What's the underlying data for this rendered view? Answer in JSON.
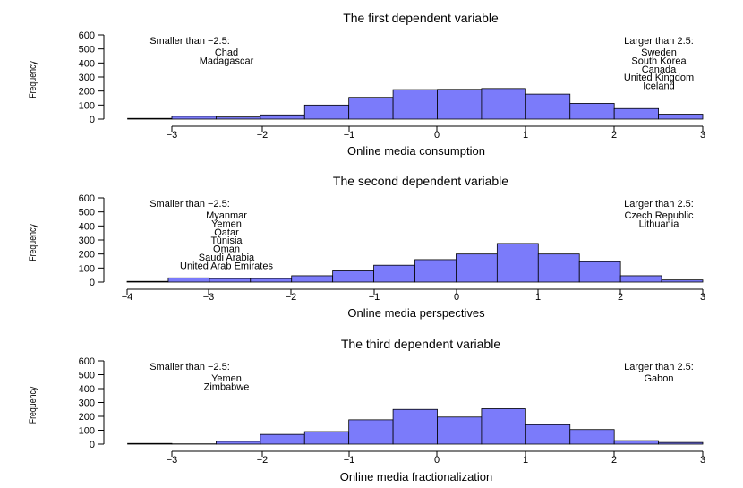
{
  "chart_data": [
    {
      "type": "bar",
      "title": "The first dependent variable",
      "xlabel": "Online media consumption",
      "ylabel": "Frequency",
      "bin_edges": [
        -3.5,
        -3,
        -2.5,
        -2,
        -1.5,
        -1,
        -0.5,
        0,
        0.5,
        1,
        1.5,
        2,
        2.5,
        3
      ],
      "values": [
        5,
        20,
        15,
        30,
        100,
        155,
        210,
        212,
        218,
        178,
        112,
        75,
        35
      ],
      "xlim": [
        -3.5,
        3
      ],
      "x_ticks": [
        "-3",
        "-2",
        "-1",
        "0",
        "1",
        "2",
        "3"
      ],
      "x_tick_values": [
        -3,
        -2,
        -1,
        0,
        1,
        2,
        3
      ],
      "ylim": [
        0,
        600
      ],
      "y_ticks": [
        "0",
        "100",
        "200",
        "300",
        "400",
        "500",
        "600"
      ],
      "y_tick_values": [
        0,
        100,
        200,
        300,
        400,
        500,
        600
      ],
      "left_note": {
        "heading": "Smaller than −2.5:",
        "items": [
          "Chad",
          "Madagascar"
        ]
      },
      "right_note": {
        "heading": "Larger than 2.5:",
        "items": [
          "Sweden",
          "South Korea",
          "Canada",
          "United Kingdom",
          "Iceland"
        ]
      }
    },
    {
      "type": "bar",
      "title": "The second dependent variable",
      "xlabel": "Online media perspectives",
      "ylabel": "Frequency",
      "bin_edges": [
        -4,
        -3.5,
        -3,
        -2.5,
        -2,
        -1.5,
        -1,
        -0.5,
        0,
        0.5,
        1,
        1.5,
        2,
        2.5,
        3
      ],
      "values": [
        5,
        30,
        25,
        25,
        45,
        80,
        120,
        160,
        200,
        275,
        200,
        145,
        45,
        15
      ],
      "xlim": [
        -4,
        3
      ],
      "x_ticks": [
        "-4",
        "-3",
        "-2",
        "-1",
        "0",
        "1",
        "2",
        "3"
      ],
      "x_tick_values": [
        -4,
        -3,
        -2,
        -1,
        0,
        1,
        2,
        3
      ],
      "ylim": [
        0,
        600
      ],
      "y_ticks": [
        "0",
        "100",
        "200",
        "300",
        "400",
        "500",
        "600"
      ],
      "y_tick_values": [
        0,
        100,
        200,
        300,
        400,
        500,
        600
      ],
      "left_note": {
        "heading": "Smaller than −2.5:",
        "items": [
          "Myanmar",
          "Yemen",
          "Qatar",
          "Tunisia",
          "Oman",
          "Saudi Arabia",
          "United Arab Emirates"
        ]
      },
      "right_note": {
        "heading": "Larger than 2.5:",
        "items": [
          "Czech Republic",
          "Lithuania"
        ]
      }
    },
    {
      "type": "bar",
      "title": "The third dependent variable",
      "xlabel": "Online media fractionalization",
      "ylabel": "Frequency",
      "bin_edges": [
        -3.5,
        -3,
        -2.5,
        -2,
        -1.5,
        -1,
        -0.5,
        0,
        0.5,
        1,
        1.5,
        2,
        2.5,
        3
      ],
      "values": [
        5,
        2,
        20,
        70,
        90,
        175,
        250,
        195,
        255,
        140,
        105,
        25,
        12
      ],
      "xlim": [
        -3.5,
        3
      ],
      "x_ticks": [
        "-3",
        "-2",
        "-1",
        "0",
        "1",
        "2",
        "3"
      ],
      "x_tick_values": [
        -3,
        -2,
        -1,
        0,
        1,
        2,
        3
      ],
      "ylim": [
        0,
        600
      ],
      "y_ticks": [
        "0",
        "100",
        "200",
        "300",
        "400",
        "500",
        "600"
      ],
      "y_tick_values": [
        0,
        100,
        200,
        300,
        400,
        500,
        600
      ],
      "left_note": {
        "heading": "Smaller than −2.5:",
        "items": [
          "Yemen",
          "Zimbabwe"
        ]
      },
      "right_note": {
        "heading": "Larger than 2.5:",
        "items": [
          "Gabon"
        ]
      }
    }
  ],
  "colors": {
    "bar_fill": "#7b7bfa",
    "bar_stroke": "#000000"
  }
}
